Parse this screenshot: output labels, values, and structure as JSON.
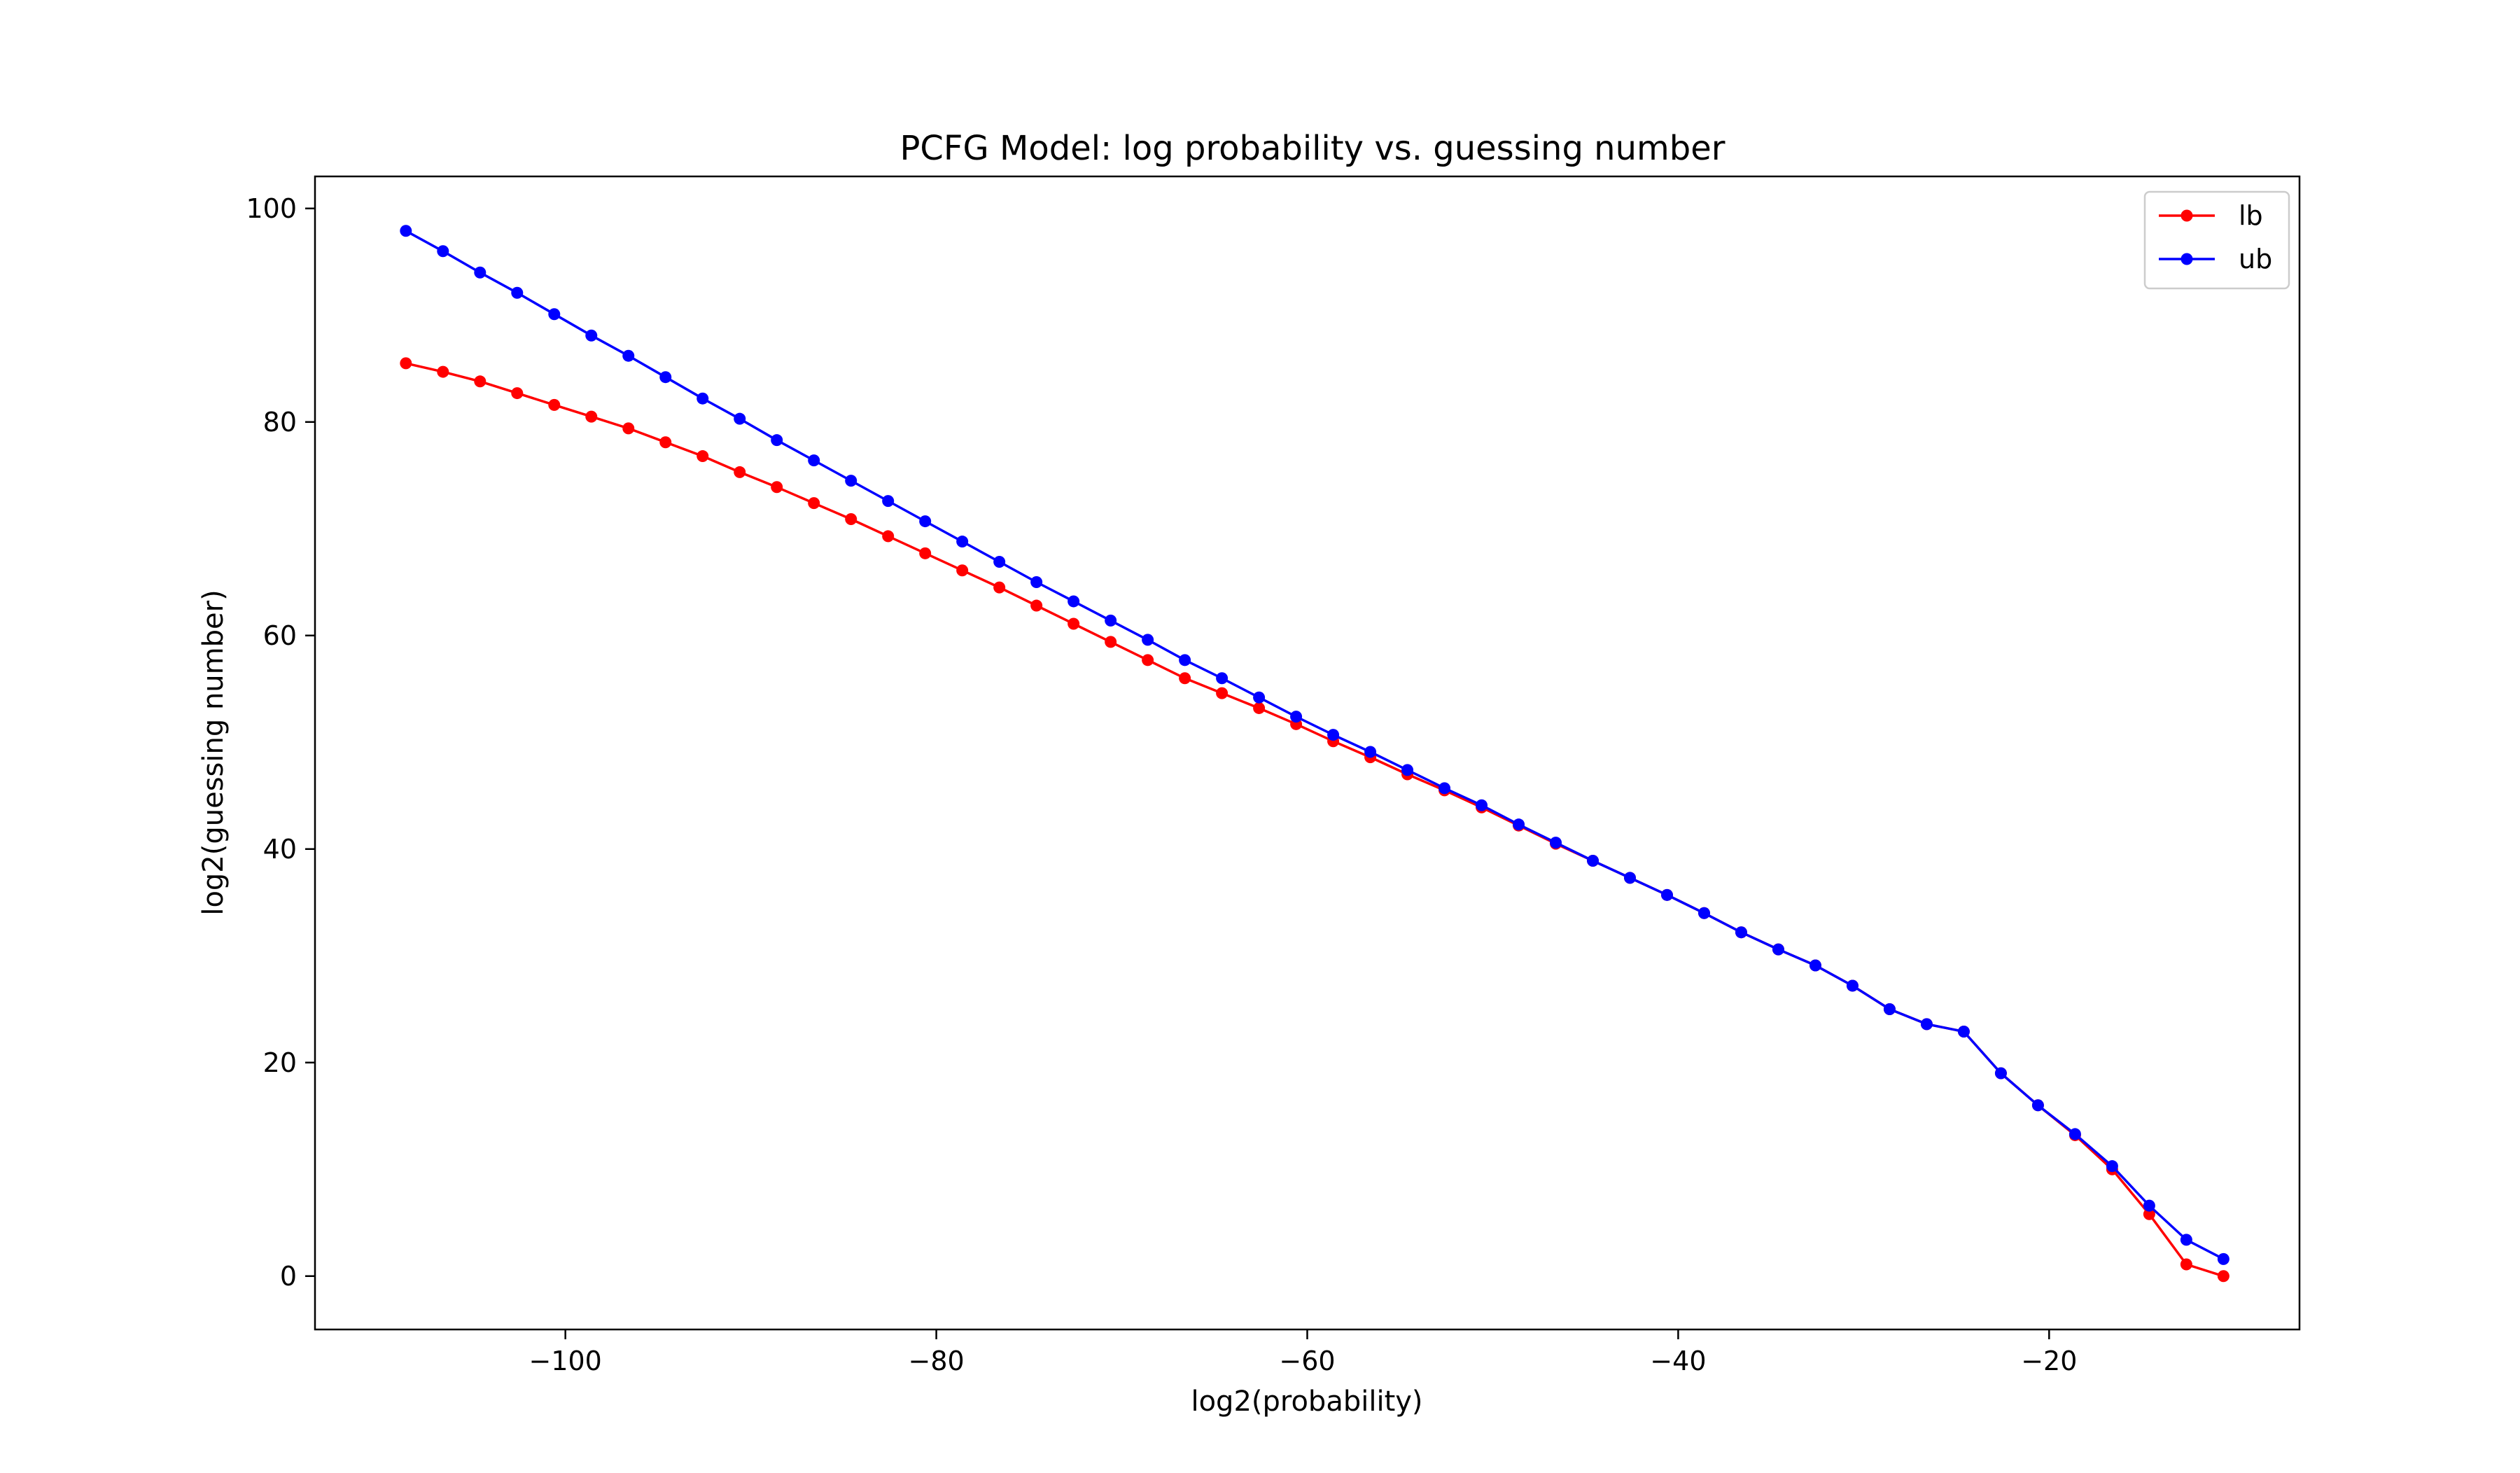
{
  "chart_data": {
    "type": "line",
    "title": "PCFG Model: log probability vs. guessing number",
    "xlabel": "log2(probability)",
    "ylabel": "log2(guessing number)",
    "xlim": [
      -113.5,
      -6.5
    ],
    "ylim": [
      -5,
      103
    ],
    "xticks": [
      -100,
      -80,
      -60,
      -40,
      -20
    ],
    "xtick_labels": [
      "−100",
      "−80",
      "−60",
      "−40",
      "−20"
    ],
    "yticks": [
      0,
      20,
      40,
      60,
      80,
      100
    ],
    "ytick_labels": [
      "0",
      "20",
      "40",
      "60",
      "80",
      "100"
    ],
    "grid": false,
    "legend_position": "top-right",
    "markers": "dot",
    "series": [
      {
        "name": "lb",
        "color": "#ff0000",
        "x": [
          -108.6,
          -106.6,
          -104.6,
          -102.6,
          -100.6,
          -98.6,
          -96.6,
          -94.6,
          -92.6,
          -90.6,
          -88.6,
          -86.6,
          -84.6,
          -82.6,
          -80.6,
          -78.6,
          -76.6,
          -74.6,
          -72.6,
          -70.6,
          -68.6,
          -66.6,
          -64.6,
          -62.6,
          -60.6,
          -58.6,
          -56.6,
          -54.6,
          -52.6,
          -50.6,
          -48.6,
          -46.6,
          -44.6,
          -42.6,
          -40.6,
          -38.6,
          -36.6,
          -34.6,
          -32.6,
          -30.6,
          -28.6,
          -26.6,
          -24.6,
          -22.6,
          -20.6,
          -18.6,
          -16.6,
          -14.6,
          -12.6,
          -10.6
        ],
        "y": [
          85.5,
          84.7,
          83.8,
          82.7,
          81.6,
          80.5,
          79.4,
          78.1,
          76.8,
          75.3,
          73.9,
          72.4,
          70.9,
          69.3,
          67.7,
          66.1,
          64.5,
          62.8,
          61.1,
          59.4,
          57.7,
          56.0,
          54.6,
          53.2,
          51.7,
          50.1,
          48.6,
          47.0,
          45.5,
          43.9,
          42.2,
          40.5,
          38.9,
          37.3,
          35.7,
          34.0,
          32.2,
          30.6,
          29.1,
          27.2,
          25.0,
          23.6,
          22.9,
          19.0,
          16.0,
          13.2,
          10.0,
          5.8,
          1.1,
          0.0
        ]
      },
      {
        "name": "ub",
        "color": "#0000ff",
        "x": [
          -108.6,
          -106.6,
          -104.6,
          -102.6,
          -100.6,
          -98.6,
          -96.6,
          -94.6,
          -92.6,
          -90.6,
          -88.6,
          -86.6,
          -84.6,
          -82.6,
          -80.6,
          -78.6,
          -76.6,
          -74.6,
          -72.6,
          -70.6,
          -68.6,
          -66.6,
          -64.6,
          -62.6,
          -60.6,
          -58.6,
          -56.6,
          -54.6,
          -52.6,
          -50.6,
          -48.6,
          -46.6,
          -44.6,
          -42.6,
          -40.6,
          -38.6,
          -36.6,
          -34.6,
          -32.6,
          -30.6,
          -28.6,
          -26.6,
          -24.6,
          -22.6,
          -20.6,
          -18.6,
          -16.6,
          -14.6,
          -12.6,
          -10.6
        ],
        "y": [
          97.9,
          96.0,
          94.0,
          92.1,
          90.1,
          88.1,
          86.2,
          84.2,
          82.2,
          80.3,
          78.3,
          76.4,
          74.5,
          72.6,
          70.7,
          68.8,
          66.9,
          65.0,
          63.2,
          61.4,
          59.6,
          57.7,
          56.0,
          54.2,
          52.4,
          50.7,
          49.1,
          47.4,
          45.7,
          44.1,
          42.3,
          40.6,
          38.9,
          37.3,
          35.7,
          34.0,
          32.2,
          30.6,
          29.1,
          27.2,
          25.0,
          23.6,
          22.9,
          19.0,
          16.0,
          13.3,
          10.3,
          6.6,
          3.4,
          1.6
        ]
      }
    ]
  }
}
